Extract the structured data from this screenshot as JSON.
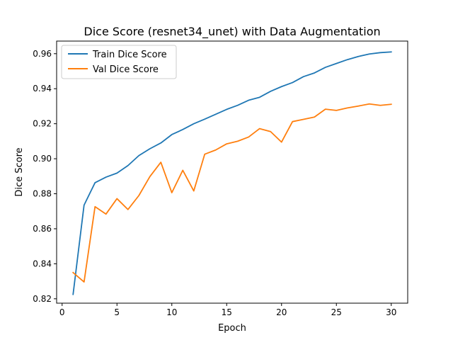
{
  "chart_data": {
    "type": "line",
    "title": "Dice Score (resnet34_unet) with Data Augmentation",
    "xlabel": "Epoch",
    "ylabel": "Dice Score",
    "xlim": [
      -0.5,
      31.5
    ],
    "ylim": [
      0.8175,
      0.9672
    ],
    "xticks": [
      0,
      5,
      10,
      15,
      20,
      25,
      30
    ],
    "yticks": [
      0.82,
      0.84,
      0.86,
      0.88,
      0.9,
      0.92,
      0.94,
      0.96
    ],
    "ytick_labels": [
      "0.82",
      "0.84",
      "0.86",
      "0.88",
      "0.90",
      "0.92",
      "0.94",
      "0.96"
    ],
    "grid": false,
    "legend_position": "top-left",
    "x": [
      1,
      2,
      3,
      4,
      5,
      6,
      7,
      8,
      9,
      10,
      11,
      12,
      13,
      14,
      15,
      16,
      17,
      18,
      19,
      20,
      21,
      22,
      23,
      24,
      25,
      26,
      27,
      28,
      29,
      30
    ],
    "series": [
      {
        "name": "Train Dice Score",
        "color": "#1f77b4",
        "values": [
          0.8225,
          0.8735,
          0.8863,
          0.8895,
          0.8918,
          0.8961,
          0.9018,
          0.9057,
          0.909,
          0.9138,
          0.9167,
          0.92,
          0.9226,
          0.9254,
          0.9282,
          0.9305,
          0.9334,
          0.9351,
          0.9385,
          0.9412,
          0.9435,
          0.9469,
          0.949,
          0.9522,
          0.9544,
          0.9566,
          0.9584,
          0.9598,
          0.9606,
          0.961
        ]
      },
      {
        "name": "Val Dice Score",
        "color": "#ff7f0e",
        "values": [
          0.835,
          0.8296,
          0.8726,
          0.8684,
          0.8772,
          0.871,
          0.879,
          0.8898,
          0.898,
          0.8806,
          0.8934,
          0.8816,
          0.9026,
          0.905,
          0.9085,
          0.91,
          0.9124,
          0.9172,
          0.9155,
          0.9095,
          0.9212,
          0.9225,
          0.9238,
          0.9283,
          0.9276,
          0.929,
          0.9301,
          0.9313,
          0.9305,
          0.9311
        ]
      }
    ]
  }
}
